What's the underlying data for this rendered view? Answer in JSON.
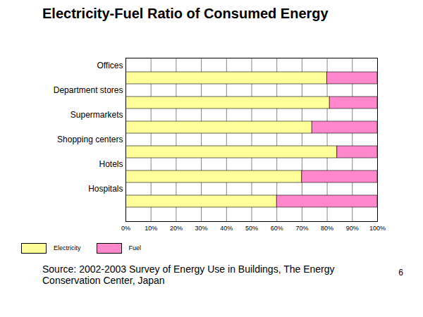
{
  "chart_data": {
    "type": "bar",
    "title": "Electricity-Fuel Ratio of Consumed Energy",
    "orientation": "horizontal",
    "stacked": true,
    "grid": true,
    "legend": "bottom",
    "categories": [
      "Offices",
      "Department stores",
      "Supermarkets",
      "Shopping centers",
      "Hotels",
      "Hospitals"
    ],
    "series": [
      {
        "name": "Electricity",
        "color": "#ffff99",
        "values": [
          80,
          81,
          74,
          84,
          70,
          60
        ]
      },
      {
        "name": "Fuel",
        "color": "#ff88cc",
        "values": [
          20,
          19,
          26,
          16,
          30,
          40
        ]
      }
    ],
    "xlim": [
      0,
      100
    ],
    "xticks": [
      {
        "value": 0,
        "label": "0%"
      },
      {
        "value": 10,
        "label": "10%"
      },
      {
        "value": 20,
        "label": "20%"
      },
      {
        "value": 30,
        "label": "30%"
      },
      {
        "value": 40,
        "label": "40%"
      },
      {
        "value": 50,
        "label": "50%"
      },
      {
        "value": 60,
        "label": "60%"
      },
      {
        "value": 70,
        "label": "70%"
      },
      {
        "value": 80,
        "label": "80%"
      },
      {
        "value": 90,
        "label": "90%"
      },
      {
        "value": 100,
        "label": "100%"
      }
    ],
    "annotations": [
      "Source:  2002-2003 Survey of Energy Use in Buildings, The Energy Conservation Center, Japan",
      "6"
    ]
  }
}
